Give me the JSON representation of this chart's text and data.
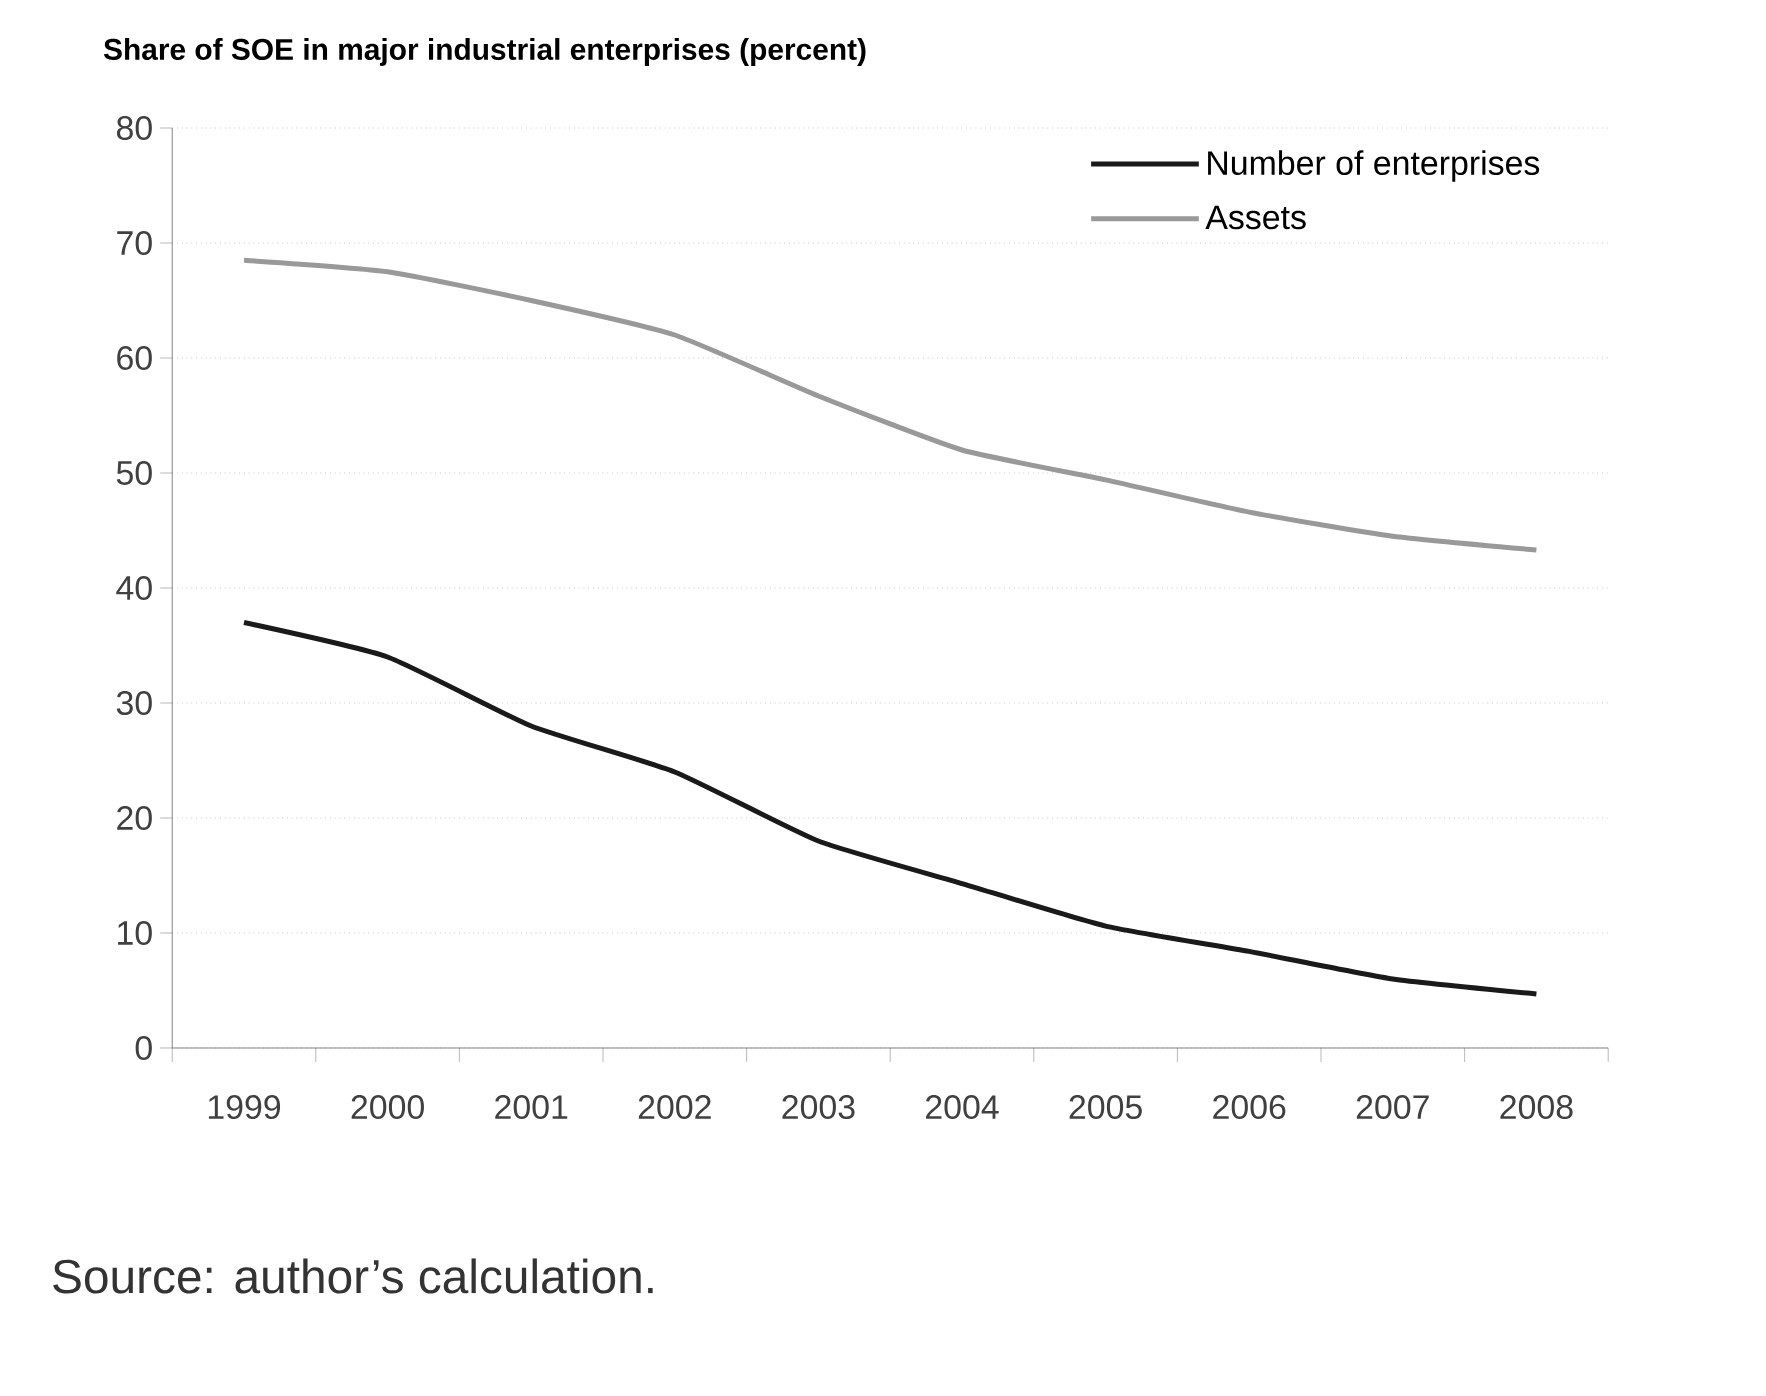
{
  "chart_data": {
    "type": "line",
    "title": "Share of SOE in major industrial enterprises (percent)",
    "categories": [
      "1999",
      "2000",
      "2001",
      "2002",
      "2003",
      "2004",
      "2005",
      "2006",
      "2007",
      "2008"
    ],
    "series": [
      {
        "name": "Number of enterprises",
        "color": "#1a1a1a",
        "values": [
          37,
          34,
          28,
          24,
          18,
          14.3,
          10.6,
          8.4,
          6,
          4.7
        ]
      },
      {
        "name": "Assets",
        "color": "#999999",
        "values": [
          68.5,
          67.5,
          65,
          62,
          56.7,
          52,
          49.4,
          46.6,
          44.5,
          43.3
        ]
      }
    ],
    "ylim": [
      0,
      80
    ],
    "yticks": [
      0,
      10,
      20,
      30,
      40,
      50,
      60,
      70,
      80
    ],
    "grid": "y",
    "legend": "top right",
    "marker": "none",
    "line_style": "solid",
    "annotations": [
      "Source: author’s calculation."
    ]
  }
}
